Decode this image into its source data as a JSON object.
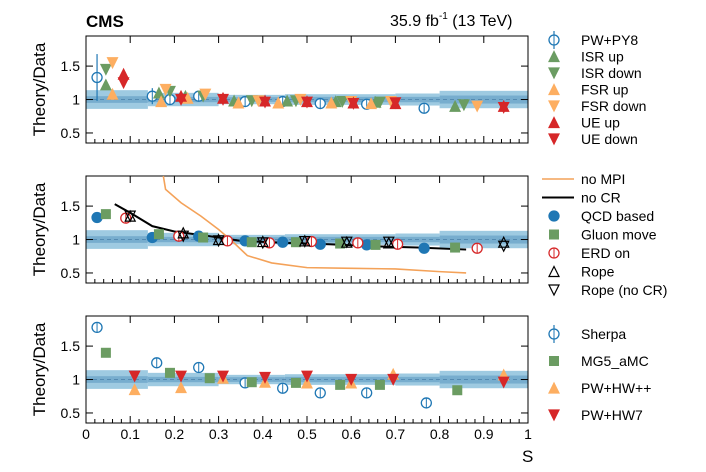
{
  "header": {
    "experiment": "CMS",
    "lumi_prefix": "35.9 fb",
    "lumi_exp": "-1",
    "lumi_suffix": " (13 TeV)"
  },
  "colors": {
    "band_outer": "#9ecae1",
    "band_inner": "#6aa3c7",
    "pw": "#1f77b4",
    "green": "#6b9c62",
    "orange": "#fdae61",
    "red": "#d62728",
    "rope": "#000000",
    "erd": "#d62728",
    "nompi": "#f4a259"
  },
  "chart_data": {
    "type": "scatter",
    "xlabel": "S",
    "xlim": [
      0,
      1
    ],
    "xticks": [
      "0",
      "0.1",
      "0.2",
      "0.3",
      "0.4",
      "0.5",
      "0.6",
      "0.7",
      "0.8",
      "0.9",
      "1"
    ],
    "ylim": [
      0.35,
      1.95
    ],
    "yticks": [
      "0.5",
      "1",
      "1.5"
    ],
    "ylabel": "Theory/Data",
    "data_band": [
      {
        "x0": 0.0,
        "x1": 0.14,
        "outer": 0.14,
        "inner": 0.05
      },
      {
        "x0": 0.14,
        "x1": 0.3,
        "outer": 0.1,
        "inner": 0.04
      },
      {
        "x0": 0.3,
        "x1": 0.45,
        "outer": 0.07,
        "inner": 0.035
      },
      {
        "x0": 0.45,
        "x1": 0.7,
        "outer": 0.08,
        "inner": 0.04
      },
      {
        "x0": 0.7,
        "x1": 0.8,
        "outer": 0.09,
        "inner": 0.04
      },
      {
        "x0": 0.8,
        "x1": 1.0,
        "outer": 0.13,
        "inner": 0.06
      }
    ],
    "panels": [
      {
        "series": [
          {
            "name": "PW+PY8",
            "marker": "circle-open",
            "color": "pw",
            "x": [
              0.025,
              0.15,
              0.19,
              0.255,
              0.36,
              0.445,
              0.53,
              0.635,
              0.765
            ],
            "y": [
              1.33,
              1.05,
              1.0,
              1.05,
              0.97,
              0.97,
              0.94,
              0.93,
              0.87
            ],
            "err": [
              0.35,
              0.12,
              0.06,
              0.04,
              0.03,
              0.03,
              0.04,
              0.05,
              0.06
            ]
          },
          {
            "name": "ISR up",
            "marker": "tri-up",
            "color": "green",
            "x": [
              0.045,
              0.165,
              0.225,
              0.335,
              0.455,
              0.565,
              0.655,
              0.835
            ],
            "y": [
              1.22,
              1.1,
              1.05,
              0.98,
              0.98,
              0.97,
              0.96,
              0.9
            ]
          },
          {
            "name": "ISR down",
            "marker": "tri-down",
            "color": "green",
            "x": [
              0.045,
              0.19,
              0.265,
              0.375,
              0.475,
              0.58,
              0.665,
              0.855
            ],
            "y": [
              1.45,
              1.12,
              1.05,
              0.98,
              0.98,
              0.97,
              0.96,
              0.92
            ]
          },
          {
            "name": "FSR up",
            "marker": "tri-up",
            "color": "orange",
            "x": [
              0.06,
              0.17,
              0.23,
              0.345,
              0.435,
              0.555,
              0.645
            ],
            "y": [
              1.08,
              0.97,
              1.02,
              0.95,
              0.95,
              0.95,
              0.94
            ]
          },
          {
            "name": "FSR down",
            "marker": "tri-down",
            "color": "orange",
            "x": [
              0.06,
              0.18,
              0.27,
              0.39,
              0.485,
              0.6,
              0.69,
              0.885
            ],
            "y": [
              1.55,
              1.15,
              1.08,
              0.98,
              1.0,
              0.97,
              0.97,
              0.9
            ]
          },
          {
            "name": "UE up",
            "marker": "tri-up",
            "color": "red",
            "x": [
              0.085,
              0.215,
              0.31,
              0.405,
              0.5,
              0.605,
              0.7,
              0.945
            ],
            "y": [
              1.38,
              1.05,
              1.02,
              0.98,
              0.97,
              0.95,
              0.94,
              0.9
            ]
          },
          {
            "name": "UE down",
            "marker": "tri-down",
            "color": "red",
            "x": [
              0.085,
              0.215,
              0.31,
              0.405,
              0.5,
              0.605,
              0.7,
              0.945
            ],
            "y": [
              1.25,
              1.0,
              1.0,
              0.96,
              0.96,
              0.94,
              0.95,
              0.88
            ]
          }
        ],
        "legend": [
          "PW+PY8",
          "ISR up",
          "ISR down",
          "FSR up",
          "FSR down",
          "UE up",
          "UE down"
        ]
      },
      {
        "lines": [
          {
            "name": "no MPI",
            "color": "nompi",
            "x": [
              0.175,
              0.18,
              0.215,
              0.26,
              0.3,
              0.33,
              0.365,
              0.42,
              0.5,
              0.6,
              0.7,
              0.8,
              0.86
            ],
            "y": [
              1.95,
              1.75,
              1.55,
              1.35,
              1.15,
              0.98,
              0.76,
              0.65,
              0.58,
              0.57,
              0.56,
              0.52,
              0.5
            ]
          },
          {
            "name": "no CR",
            "color": "rope",
            "x": [
              0.065,
              0.1,
              0.15,
              0.2,
              0.28,
              0.35,
              0.45,
              0.55,
              0.65,
              0.75,
              0.86
            ],
            "y": [
              1.53,
              1.4,
              1.2,
              1.12,
              1.05,
              0.98,
              0.95,
              0.93,
              0.9,
              0.88,
              0.85
            ]
          }
        ],
        "series": [
          {
            "name": "QCD based",
            "marker": "circle-filled",
            "color": "pw",
            "x": [
              0.025,
              0.15,
              0.255,
              0.36,
              0.445,
              0.53,
              0.635,
              0.765
            ],
            "y": [
              1.33,
              1.03,
              1.05,
              0.98,
              0.96,
              0.93,
              0.92,
              0.87
            ]
          },
          {
            "name": "Gluon move",
            "marker": "square",
            "color": "green",
            "x": [
              0.045,
              0.165,
              0.265,
              0.375,
              0.475,
              0.575,
              0.655,
              0.835
            ],
            "y": [
              1.38,
              1.08,
              1.03,
              0.96,
              0.96,
              0.94,
              0.92,
              0.88
            ]
          },
          {
            "name": "ERD on",
            "marker": "circle-open",
            "color": "erd",
            "x": [
              0.09,
              0.21,
              0.32,
              0.415,
              0.51,
              0.615,
              0.705,
              0.885
            ],
            "y": [
              1.32,
              1.05,
              0.98,
              0.95,
              0.97,
              0.95,
              0.93,
              0.87
            ]
          },
          {
            "name": "Rope",
            "marker": "tri-up-open",
            "color": "rope",
            "x": [
              0.1,
              0.22,
              0.3,
              0.4,
              0.495,
              0.59,
              0.685,
              0.945
            ],
            "y": [
              1.35,
              1.1,
              1.0,
              0.97,
              0.98,
              0.96,
              0.95,
              0.96
            ]
          },
          {
            "name": "Rope (no CR)",
            "marker": "tri-down-open",
            "color": "rope",
            "x": [
              0.1,
              0.22,
              0.3,
              0.4,
              0.495,
              0.59,
              0.685,
              0.945
            ],
            "y": [
              1.35,
              1.05,
              0.98,
              0.95,
              0.97,
              0.96,
              0.96,
              0.9
            ]
          }
        ],
        "legend": [
          "no MPI",
          "no CR",
          "QCD based",
          "Gluon move",
          "ERD on",
          "Rope",
          "Rope (no CR)"
        ]
      },
      {
        "series": [
          {
            "name": "Sherpa",
            "marker": "circle-open",
            "color": "pw",
            "x": [
              0.025,
              0.16,
              0.255,
              0.36,
              0.445,
              0.53,
              0.635,
              0.77
            ],
            "y": [
              1.78,
              1.25,
              1.18,
              0.95,
              0.87,
              0.8,
              0.8,
              0.65
            ],
            "err": [
              0.07,
              0.03,
              0.03,
              0.03,
              0.03,
              0.03,
              0.03,
              0.03
            ]
          },
          {
            "name": "MG5_aMC",
            "marker": "square",
            "color": "green",
            "x": [
              0.045,
              0.19,
              0.28,
              0.375,
              0.475,
              0.575,
              0.665,
              0.84
            ],
            "y": [
              1.4,
              1.1,
              1.02,
              0.96,
              0.95,
              0.92,
              0.92,
              0.84
            ]
          },
          {
            "name": "PW+HW++",
            "marker": "tri-up",
            "color": "orange",
            "x": [
              0.11,
              0.215,
              0.31,
              0.405,
              0.5,
              0.6,
              0.695,
              0.945
            ],
            "y": [
              0.85,
              0.88,
              1.02,
              0.96,
              0.95,
              0.95,
              1.08,
              1.07
            ]
          },
          {
            "name": "PW+HW7",
            "marker": "tri-down",
            "color": "red",
            "x": [
              0.11,
              0.215,
              0.31,
              0.405,
              0.5,
              0.6,
              0.695,
              0.945
            ],
            "y": [
              1.05,
              1.05,
              1.05,
              1.03,
              1.05,
              1.0,
              1.0,
              0.96
            ]
          }
        ],
        "legend": [
          "Sherpa",
          "MG5_aMC",
          "PW+HW++",
          "PW+HW7"
        ]
      }
    ]
  }
}
